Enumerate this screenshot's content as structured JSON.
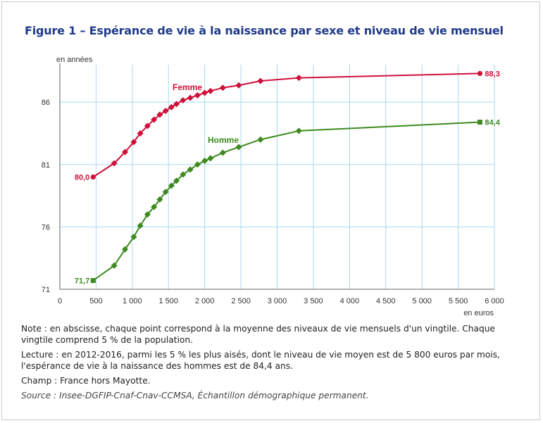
{
  "title": "Figure 1 – Espérance de vie à la naissance par sexe et niveau de vie mensuel",
  "notes": {
    "note": "Note : en abscisse, chaque point correspond à la moyenne des niveaux de vie mensuels d'un vingtile. Chaque vingtile comprend 5 % de la population.",
    "lecture": "Lecture : en 2012-2016, parmi les 5 % les plus aisés, dont le niveau de vie moyen est de 5 800 euros par mois, l'espérance de vie à la naissance des hommes est de 84,4 ans.",
    "champ": "Champ : France hors Mayotte.",
    "source": "Source : Insee-DGFIP-Cnaf-Cnav-CCMSA, Échantillon démographique permanent."
  },
  "chart_data": {
    "type": "line",
    "title": "Figure 1 – Espérance de vie à la naissance par sexe et niveau de vie mensuel",
    "xlabel": "en euros",
    "ylabel": "en années",
    "xlim": [
      0,
      6000
    ],
    "ylim": [
      71,
      89
    ],
    "x_ticks": [
      0,
      500,
      1000,
      1500,
      2000,
      2500,
      3000,
      3500,
      4000,
      4500,
      5000,
      5500,
      6000
    ],
    "x_tick_labels": [
      "0",
      "500",
      "1 000",
      "1 500",
      "2 000",
      "2 500",
      "3 000",
      "3 500",
      "4 000",
      "4 500",
      "5 000",
      "5 500",
      "6 000"
    ],
    "y_ticks": [
      71,
      76,
      81,
      86
    ],
    "y_tick_labels": [
      "71",
      "76",
      "81",
      "86"
    ],
    "grid": true,
    "series": [
      {
        "name": "Femme",
        "color": "#d0103a",
        "marker": "circle",
        "start_label": "80,0",
        "end_label": "88,3",
        "points": [
          [
            460,
            80.0
          ],
          [
            750,
            81.1
          ],
          [
            900,
            82.0
          ],
          [
            1020,
            82.8
          ],
          [
            1110,
            83.5
          ],
          [
            1210,
            84.1
          ],
          [
            1300,
            84.6
          ],
          [
            1380,
            85.0
          ],
          [
            1460,
            85.3
          ],
          [
            1540,
            85.6
          ],
          [
            1610,
            85.85
          ],
          [
            1700,
            86.15
          ],
          [
            1800,
            86.35
          ],
          [
            1900,
            86.55
          ],
          [
            2000,
            86.75
          ],
          [
            2080,
            86.9
          ],
          [
            2250,
            87.15
          ],
          [
            2470,
            87.35
          ],
          [
            2770,
            87.7
          ],
          [
            3300,
            87.95
          ],
          [
            5800,
            88.3
          ]
        ]
      },
      {
        "name": "Homme",
        "color": "#3d8b1f",
        "marker": "diamond",
        "start_label": "71,7",
        "end_label": "84,4",
        "points": [
          [
            460,
            71.7
          ],
          [
            750,
            72.9
          ],
          [
            900,
            74.2
          ],
          [
            1020,
            75.2
          ],
          [
            1110,
            76.1
          ],
          [
            1210,
            77.0
          ],
          [
            1300,
            77.6
          ],
          [
            1380,
            78.2
          ],
          [
            1460,
            78.8
          ],
          [
            1540,
            79.3
          ],
          [
            1610,
            79.7
          ],
          [
            1700,
            80.2
          ],
          [
            1800,
            80.6
          ],
          [
            1900,
            81.0
          ],
          [
            2000,
            81.3
          ],
          [
            2080,
            81.5
          ],
          [
            2250,
            81.95
          ],
          [
            2470,
            82.4
          ],
          [
            2770,
            83.0
          ],
          [
            3300,
            83.7
          ],
          [
            5800,
            84.4
          ]
        ]
      }
    ]
  }
}
